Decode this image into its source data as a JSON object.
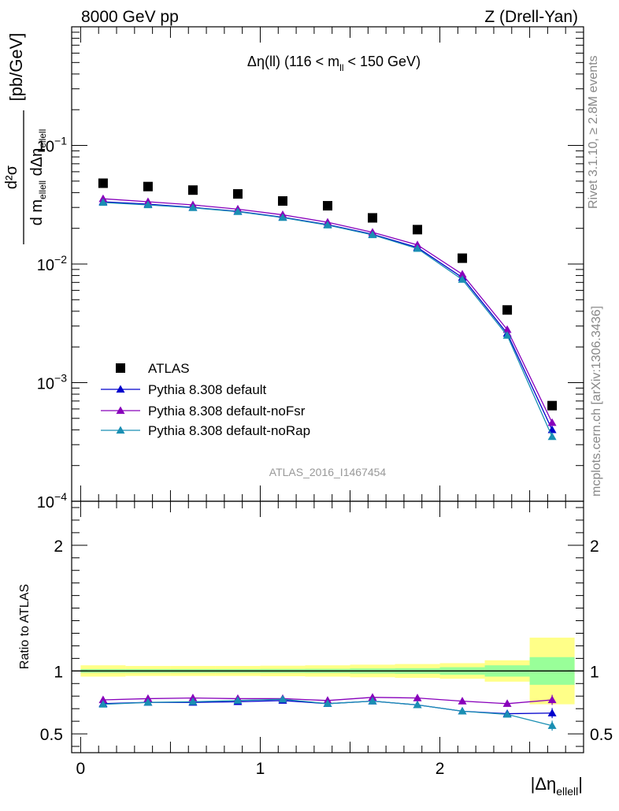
{
  "header": {
    "energy_label": "8000 GeV pp",
    "process_label": "Z (Drell-Yan)"
  },
  "side_labels": {
    "rivet": "Rivet 3.1.10, ≥ 2.8M events",
    "mcplots": "mcplots.cern.ch [arXiv:1306.3436]"
  },
  "colors": {
    "atlas": "#000000",
    "default": "#0000cc",
    "noFsr": "#8800bb",
    "noRap": "#1a8fb3",
    "band_yellow": "#ffff88",
    "band_green": "#99ff99"
  },
  "chart_data": [
    {
      "type": "scatter",
      "title": "Δη(ll) (116 < m_ll < 150 GeV)",
      "title_parts": {
        "pre": "Δη(ll) (116 < m",
        "sub": "ll",
        "post": " < 150 GeV)"
      },
      "ylabel": "d²σ / d m_ellell dΔη_ellell [pb/GeV]",
      "ylabel_parts": {
        "unit": "[pb/GeV]",
        "num": "d²σ",
        "den_a": "d m",
        "den_a_sub": "ellell",
        "den_b": "dΔη",
        "den_b_sub": "ellell"
      },
      "watermark": "ATLAS_2016_I1467454",
      "yscale": "log",
      "ylim": [
        0.0001,
        1
      ],
      "xlim": [
        -0.05,
        2.8
      ],
      "ytick_labels": [
        {
          "value": 0.1,
          "base": "10",
          "exp": "−1"
        },
        {
          "value": 0.01,
          "base": "10",
          "exp": "−2"
        },
        {
          "value": 0.001,
          "base": "10",
          "exp": "−3"
        },
        {
          "value": 0.0001,
          "base": "10",
          "exp": "−4"
        }
      ],
      "legend_position": "bottom-left",
      "x": [
        0.125,
        0.375,
        0.625,
        0.875,
        1.125,
        1.375,
        1.625,
        1.875,
        2.125,
        2.375,
        2.625
      ],
      "x_edges": [
        0.0,
        0.25,
        0.5,
        0.75,
        1.0,
        1.25,
        1.5,
        1.75,
        2.0,
        2.25,
        2.5,
        2.75
      ],
      "series": [
        {
          "name": "ATLAS",
          "key": "atlas",
          "marker": "square",
          "values": [
            0.048,
            0.045,
            0.042,
            0.039,
            0.034,
            0.031,
            0.0245,
            0.0195,
            0.0112,
            0.0041,
            0.00064
          ]
        },
        {
          "name": "Pythia 8.308 default",
          "key": "default",
          "marker": "triangle",
          "values": [
            0.0335,
            0.032,
            0.03,
            0.0278,
            0.0248,
            0.0215,
            0.0178,
            0.0138,
            0.0077,
            0.0026,
            0.0004
          ]
        },
        {
          "name": "Pythia 8.308 default-noFsr",
          "key": "noFsr",
          "marker": "triangle",
          "values": [
            0.0355,
            0.0335,
            0.0315,
            0.029,
            0.026,
            0.0225,
            0.0185,
            0.0145,
            0.0082,
            0.0028,
            0.00046
          ]
        },
        {
          "name": "Pythia 8.308 default-noRap",
          "key": "noRap",
          "marker": "triangle",
          "values": [
            0.033,
            0.0315,
            0.0298,
            0.0276,
            0.0246,
            0.0213,
            0.0176,
            0.0135,
            0.0074,
            0.0025,
            0.00035
          ]
        }
      ]
    },
    {
      "type": "line",
      "ylabel": "Ratio to ATLAS",
      "xlabel": "|Δη_ellell|",
      "xlabel_parts": {
        "main": "|Δη",
        "sub": "ellell",
        "close": "|"
      },
      "ylim": [
        0.35,
        2.35
      ],
      "xlim": [
        -0.05,
        2.8
      ],
      "yticks": [
        0.5,
        1,
        2
      ],
      "xticks": [
        0,
        1,
        2
      ],
      "x": [
        0.125,
        0.375,
        0.625,
        0.875,
        1.125,
        1.375,
        1.625,
        1.875,
        2.125,
        2.375,
        2.625
      ],
      "x_edges": [
        0.0,
        0.25,
        0.5,
        0.75,
        1.0,
        1.25,
        1.5,
        1.75,
        2.0,
        2.25,
        2.5,
        2.75
      ],
      "bands": {
        "total_half_width": [
          0.045,
          0.04,
          0.04,
          0.04,
          0.042,
          0.045,
          0.05,
          0.055,
          0.062,
          0.085,
          0.265
        ],
        "stat_half_width": [
          0.015,
          0.015,
          0.015,
          0.015,
          0.016,
          0.017,
          0.02,
          0.022,
          0.03,
          0.045,
          0.11
        ]
      },
      "series": [
        {
          "name": "Pythia 8.308 default",
          "key": "default",
          "values": [
            0.74,
            0.75,
            0.75,
            0.755,
            0.765,
            0.74,
            0.76,
            0.73,
            0.68,
            0.66,
            0.665
          ],
          "errors": [
            0.008,
            0.008,
            0.008,
            0.009,
            0.01,
            0.01,
            0.01,
            0.012,
            0.014,
            0.018,
            0.04
          ]
        },
        {
          "name": "Pythia 8.308 default-noFsr",
          "key": "noFsr",
          "values": [
            0.77,
            0.78,
            0.785,
            0.78,
            0.78,
            0.765,
            0.79,
            0.785,
            0.76,
            0.74,
            0.77
          ],
          "errors": [
            0.008,
            0.008,
            0.008,
            0.009,
            0.01,
            0.01,
            0.01,
            0.012,
            0.014,
            0.018,
            0.04
          ]
        },
        {
          "name": "Pythia 8.308 default-noRap",
          "key": "noRap",
          "values": [
            0.735,
            0.75,
            0.755,
            0.765,
            0.775,
            0.74,
            0.76,
            0.73,
            0.68,
            0.655,
            0.565
          ],
          "errors": [
            0.008,
            0.008,
            0.008,
            0.009,
            0.01,
            0.01,
            0.01,
            0.012,
            0.014,
            0.018,
            0.04
          ]
        }
      ]
    }
  ]
}
